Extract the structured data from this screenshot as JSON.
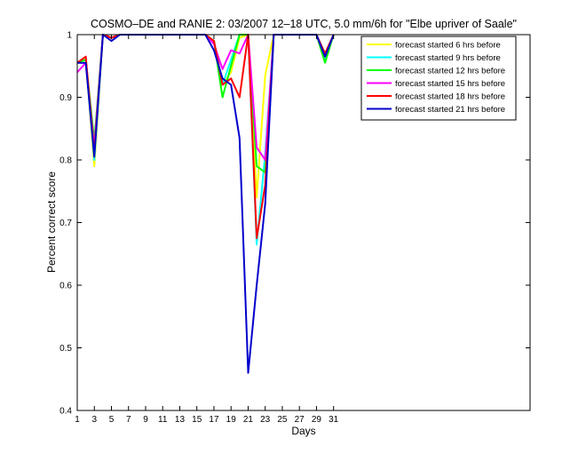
{
  "chart_data": {
    "type": "line",
    "title": "COSMO–DE and RANIE 2: 03/2007 12–18 UTC, 5.0 mm/6h for \"Elbe upriver of Saale\"",
    "xlabel": "Days",
    "ylabel": "Percent correct score",
    "xlim": [
      1,
      54
    ],
    "ylim": [
      0.4,
      1
    ],
    "xticks": [
      1,
      3,
      5,
      7,
      9,
      11,
      13,
      15,
      17,
      19,
      21,
      23,
      25,
      27,
      29,
      31
    ],
    "yticks": [
      0.4,
      0.5,
      0.6,
      0.7,
      0.8,
      0.9,
      1
    ],
    "ytick_labels": [
      "0.4",
      "0.5",
      "0.6",
      "0.7",
      "0.8",
      "0.9",
      "1"
    ],
    "legend_position": "top-right",
    "grid": false,
    "x": [
      1,
      2,
      3,
      4,
      5,
      6,
      7,
      8,
      9,
      10,
      11,
      12,
      13,
      14,
      15,
      16,
      17,
      18,
      19,
      20,
      21,
      22,
      23,
      24,
      25,
      26,
      27,
      28,
      29,
      30,
      31
    ],
    "series": [
      {
        "name": "forecast started 6 hrs before",
        "color": "#ffff00",
        "values": [
          0.955,
          0.96,
          0.79,
          1,
          0.995,
          1,
          1,
          1,
          1,
          1,
          1,
          1,
          1,
          1,
          1,
          1,
          0.99,
          0.92,
          0.94,
          0.995,
          1,
          0.74,
          0.935,
          1,
          1,
          1,
          1,
          1,
          1,
          0.965,
          1
        ]
      },
      {
        "name": "forecast started 9 hrs before",
        "color": "#00ffff",
        "values": [
          0.955,
          0.96,
          0.8,
          1,
          0.995,
          1,
          1,
          1,
          1,
          1,
          1,
          1,
          1,
          1,
          1,
          1,
          0.99,
          0.92,
          0.96,
          1,
          1,
          0.665,
          0.81,
          1,
          1,
          1,
          1,
          1,
          1,
          0.96,
          1
        ]
      },
      {
        "name": "forecast started 12 hrs before",
        "color": "#00ff00",
        "values": [
          0.955,
          0.96,
          0.83,
          1,
          0.995,
          1,
          1,
          1,
          1,
          1,
          1,
          1,
          1,
          1,
          1,
          1,
          0.99,
          0.9,
          0.95,
          1,
          1,
          0.79,
          0.78,
          1,
          1,
          1,
          1,
          1,
          1,
          0.955,
          1
        ]
      },
      {
        "name": "forecast started 15 hrs before",
        "color": "#ff00ff",
        "values": [
          0.94,
          0.955,
          0.82,
          1,
          0.995,
          1,
          1,
          1,
          1,
          1,
          1,
          1,
          1,
          1,
          1,
          1,
          0.985,
          0.945,
          0.975,
          0.97,
          1,
          0.82,
          0.8,
          1,
          1,
          1,
          1,
          1,
          1,
          0.965,
          1
        ]
      },
      {
        "name": "forecast started 18 hrs before",
        "color": "#ff0000",
        "values": [
          0.955,
          0.965,
          0.81,
          1,
          0.995,
          1,
          1,
          1,
          1,
          1,
          1,
          1,
          1,
          1,
          1,
          1,
          0.99,
          0.92,
          0.93,
          0.9,
          1,
          0.675,
          0.76,
          1,
          1,
          1,
          1,
          1,
          1,
          0.97,
          1
        ]
      },
      {
        "name": "forecast started 21 hrs before",
        "color": "#0000cc",
        "values": [
          0.955,
          0.955,
          0.805,
          1,
          0.99,
          1,
          1,
          1,
          1,
          1,
          1,
          1,
          1,
          1,
          1,
          1,
          0.975,
          0.93,
          0.92,
          0.835,
          0.46,
          0.6,
          0.73,
          1,
          1,
          1,
          1,
          1,
          1,
          0.965,
          1
        ]
      }
    ]
  }
}
